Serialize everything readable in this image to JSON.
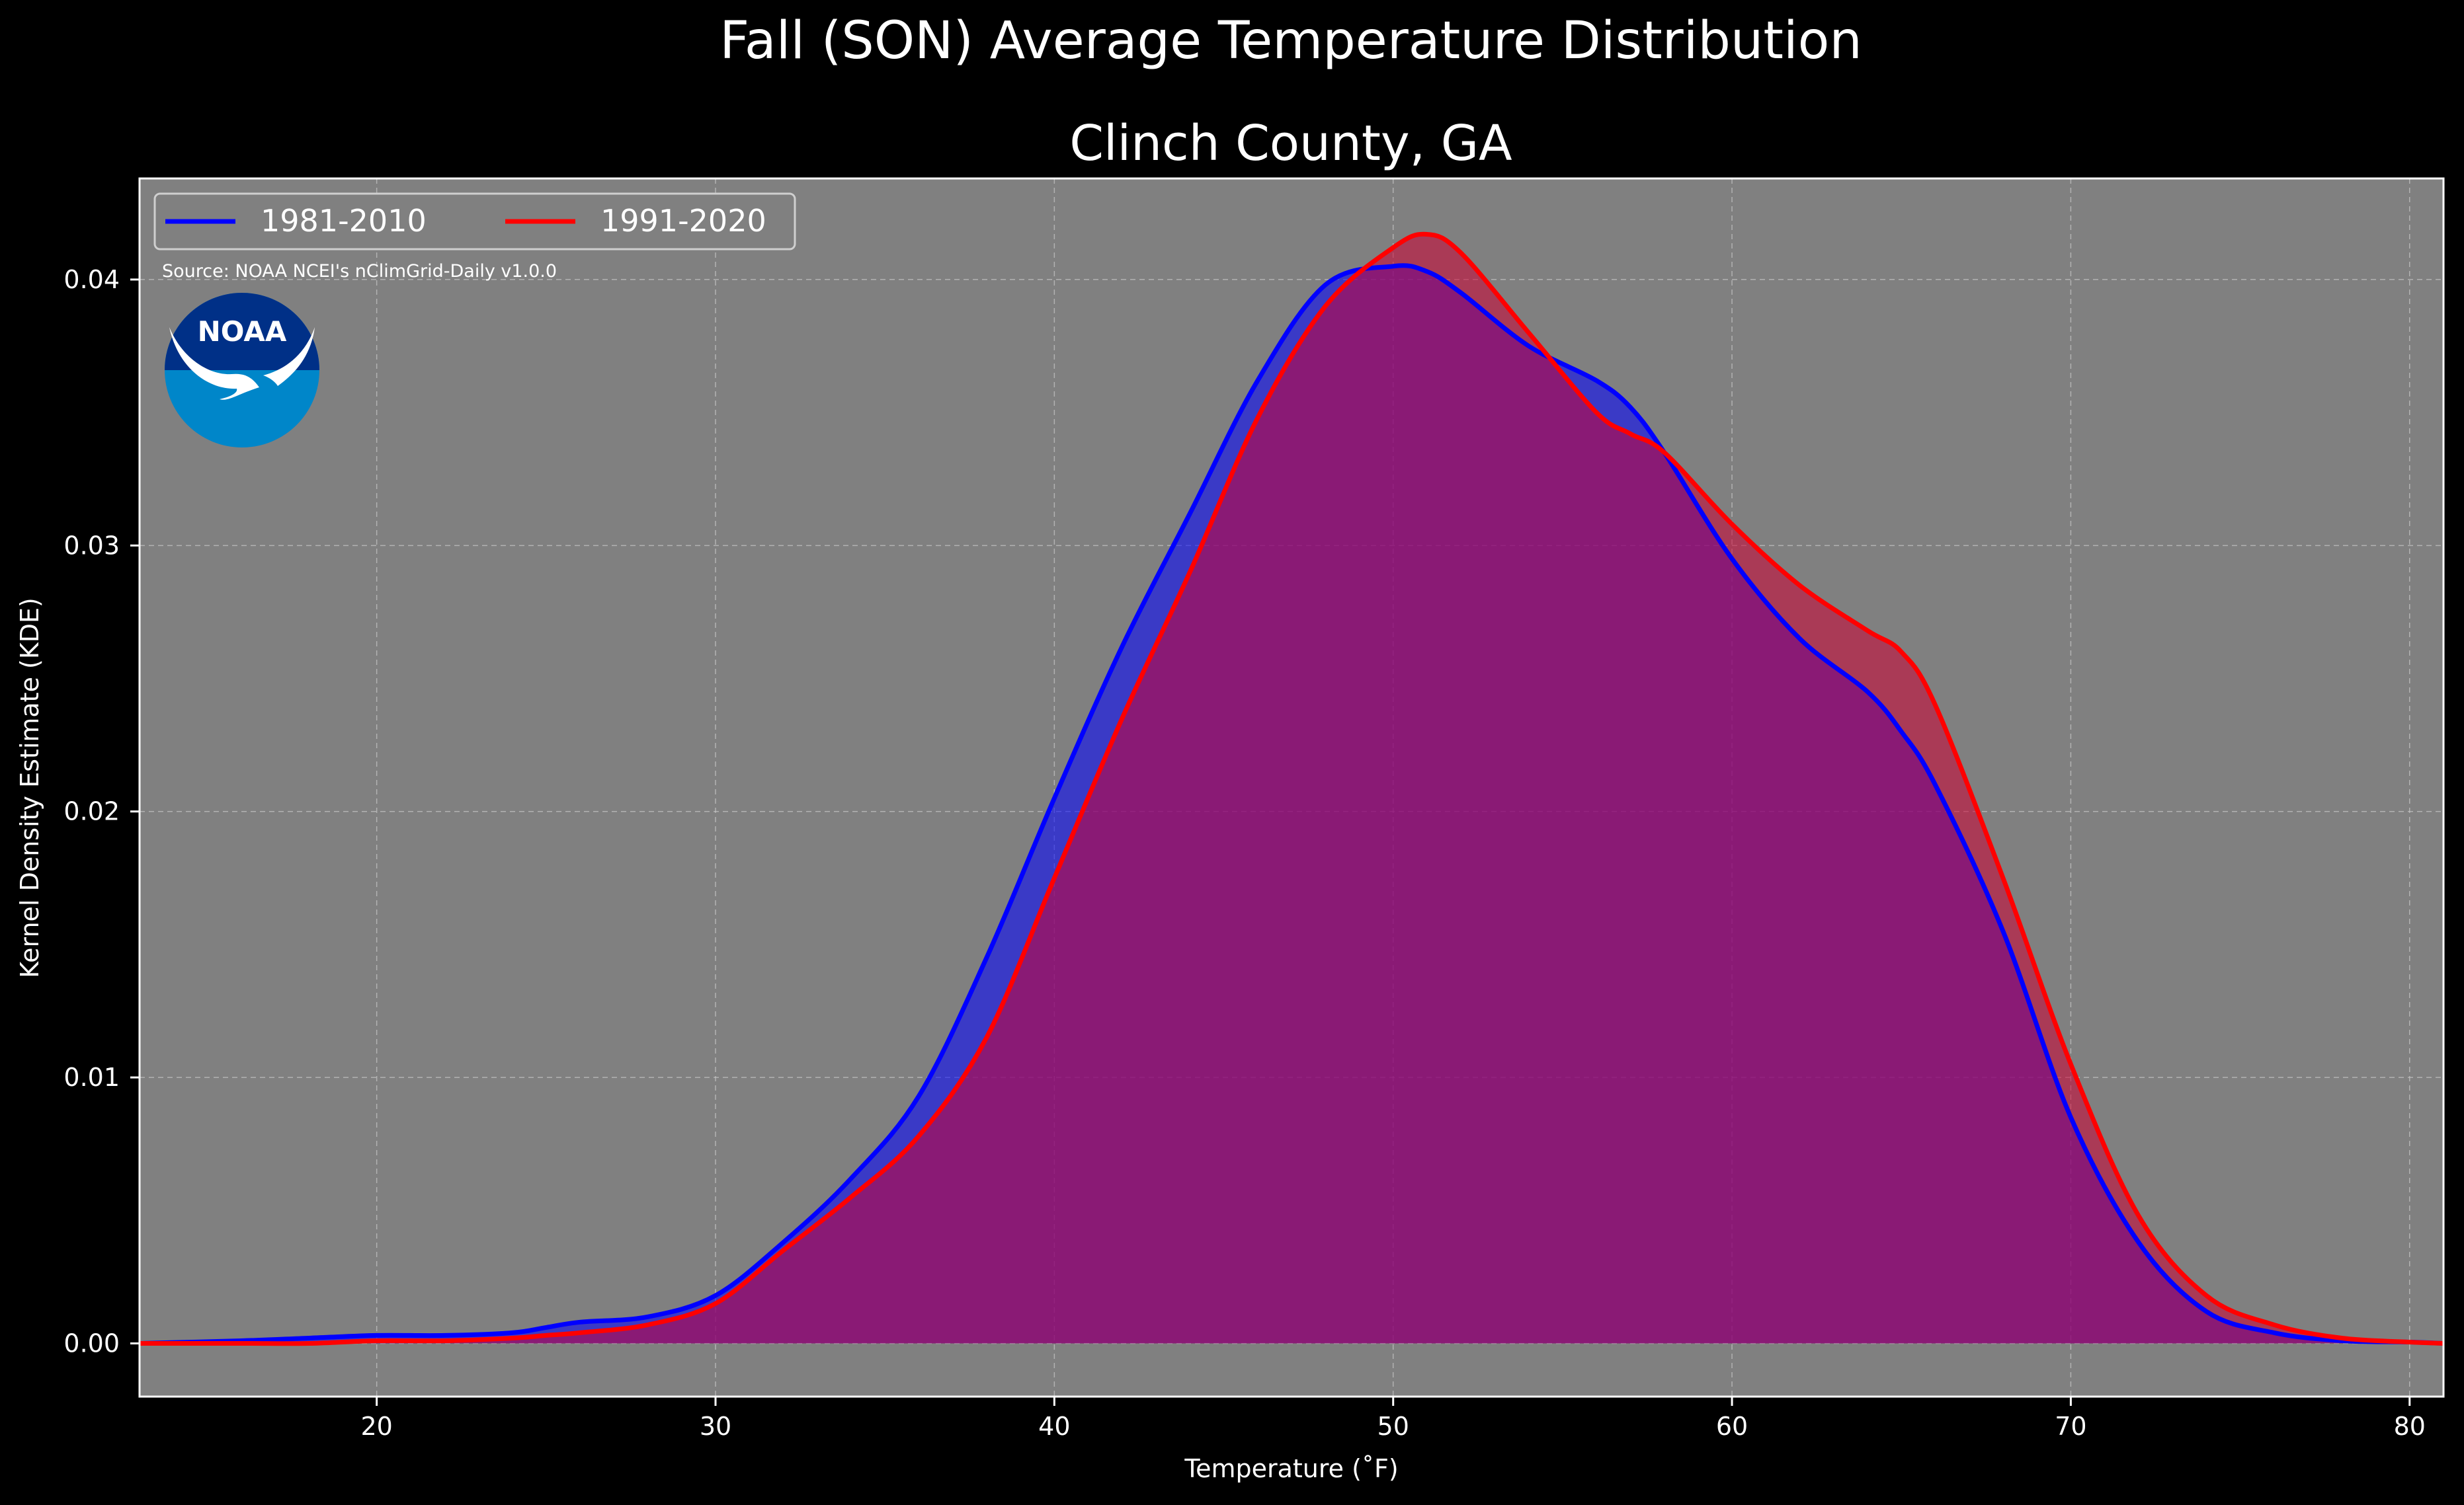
{
  "chart_data": {
    "type": "area",
    "title": "Fall (SON) Average Temperature Distribution",
    "subtitle": "Clinch County, GA",
    "xlabel": "Temperature (˚F)",
    "ylabel": "Kernel Density Estimate (KDE)",
    "source": "Source: NOAA NCEI's nClimGrid-Daily v1.0.0",
    "logo_text": "NOAA",
    "xlim": [
      13,
      81
    ],
    "ylim": [
      -0.002,
      0.0438
    ],
    "xticks": [
      20,
      30,
      40,
      50,
      60,
      70,
      80
    ],
    "yticks": [
      0.0,
      0.01,
      0.02,
      0.03,
      0.04
    ],
    "xtick_labels": [
      "20",
      "30",
      "40",
      "50",
      "60",
      "70",
      "80"
    ],
    "ytick_labels": [
      "0.00",
      "0.01",
      "0.02",
      "0.03",
      "0.04"
    ],
    "grid": true,
    "legend_position": "top-left",
    "background_color": "#808080",
    "series": [
      {
        "name": "1981-2010",
        "color": "#0000ff",
        "fill_color": "#0000ff",
        "x": [
          13,
          16,
          18,
          20,
          22,
          24,
          25,
          26,
          28,
          30,
          32,
          34,
          36,
          38,
          40,
          42,
          44,
          46,
          48,
          50,
          51,
          52,
          54,
          56,
          57,
          58,
          60,
          62,
          64,
          65,
          66,
          68,
          70,
          72,
          74,
          76,
          78,
          80,
          81
        ],
        "y": [
          0,
          0.0001,
          0.0002,
          0.0003,
          0.0003,
          0.0004,
          0.0006,
          0.0008,
          0.001,
          0.0018,
          0.0038,
          0.0062,
          0.0093,
          0.0145,
          0.0205,
          0.0262,
          0.0312,
          0.0362,
          0.0398,
          0.0405,
          0.0403,
          0.0395,
          0.0375,
          0.0362,
          0.0352,
          0.0335,
          0.0295,
          0.0265,
          0.0245,
          0.023,
          0.021,
          0.0155,
          0.0085,
          0.0038,
          0.0012,
          0.0004,
          0.0001,
          5e-05,
          0
        ]
      },
      {
        "name": "1991-2020",
        "color": "#ff0000",
        "fill_color": "#cc0033",
        "x": [
          13,
          16,
          18,
          20,
          22,
          24,
          25,
          26,
          28,
          30,
          32,
          34,
          36,
          38,
          40,
          42,
          44,
          46,
          48,
          50,
          51,
          52,
          54,
          56,
          57,
          58,
          60,
          62,
          64,
          65,
          66,
          68,
          70,
          72,
          74,
          76,
          78,
          80,
          81
        ],
        "y": [
          0,
          0,
          0,
          0.0001,
          0.0001,
          0.0002,
          0.0003,
          0.0004,
          0.0007,
          0.0015,
          0.0035,
          0.0055,
          0.0078,
          0.0115,
          0.0175,
          0.0235,
          0.029,
          0.0348,
          0.039,
          0.0412,
          0.0417,
          0.041,
          0.038,
          0.035,
          0.0342,
          0.0335,
          0.0308,
          0.0285,
          0.0268,
          0.026,
          0.024,
          0.0175,
          0.0105,
          0.0048,
          0.0018,
          0.0007,
          0.0002,
          5e-05,
          0
        ]
      }
    ]
  }
}
